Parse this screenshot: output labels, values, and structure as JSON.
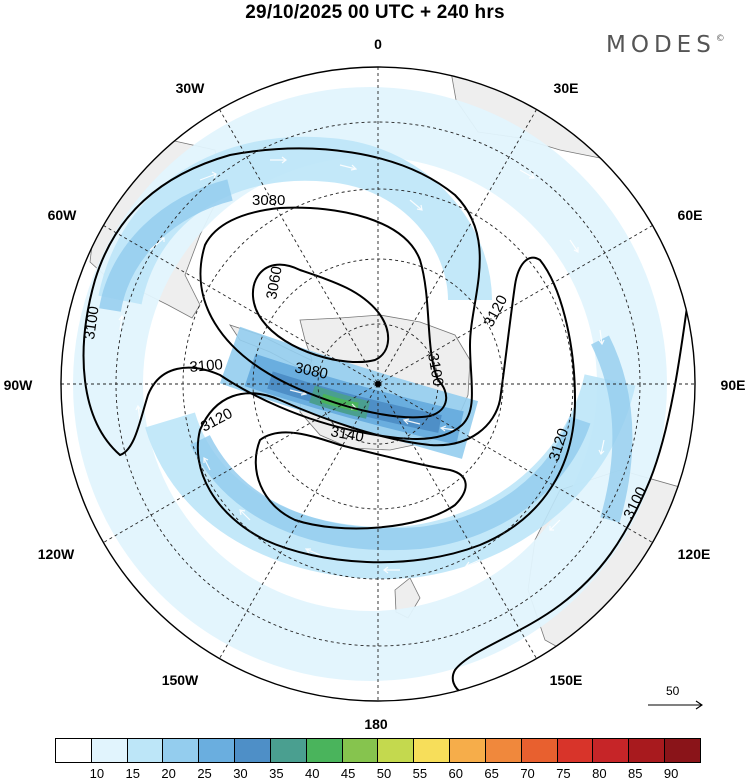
{
  "header": {
    "title": "29/10/2025  00 UTC  + 240 hrs",
    "brand": "MODES",
    "brand_mark": "©"
  },
  "map": {
    "projection": "south-polar-stereographic",
    "longitude_labels": {
      "top": "0",
      "top_right": "30E",
      "right_upper": "60E",
      "right": "90E",
      "right_lower": "120E",
      "bottom_right": "150E",
      "bottom": "180",
      "bottom_left": "150W",
      "left_lower": "120W",
      "left": "90W",
      "left_upper": "60W",
      "top_left": "30W"
    },
    "contour_labels": [
      "3080",
      "3060",
      "3100",
      "3080",
      "3100",
      "3120",
      "3140",
      "3120",
      "3120",
      "3100",
      "3100"
    ],
    "wind_reference": {
      "value": "50",
      "icon": "arrow-right-icon"
    }
  },
  "colorbar": {
    "labels": [
      "10",
      "15",
      "20",
      "25",
      "30",
      "35",
      "40",
      "45",
      "50",
      "55",
      "60",
      "65",
      "70",
      "75",
      "80",
      "85",
      "90"
    ],
    "colors": [
      "#ffffff",
      "#e1f4fd",
      "#bde6f8",
      "#94cdee",
      "#6aaedf",
      "#4e8fc7",
      "#4a9f90",
      "#4ab45c",
      "#86c44e",
      "#c4d94e",
      "#f7de5a",
      "#f6ad4a",
      "#f0883c",
      "#e8602f",
      "#d8342a",
      "#c62528",
      "#a81a1e",
      "#8a1419"
    ]
  }
}
